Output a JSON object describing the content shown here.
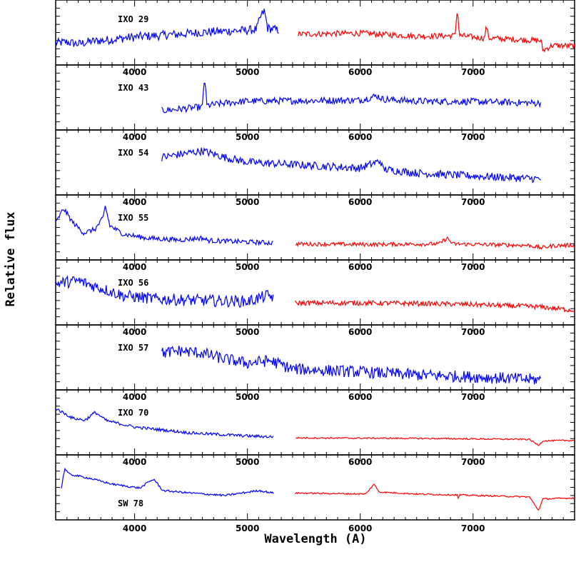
{
  "chart_data": {
    "type": "line",
    "xlabel": "Wavelength (A)",
    "ylabel": "Relative flux",
    "xlim": [
      3300,
      7900
    ],
    "x_ticks": [
      "4000",
      "5000",
      "6000",
      "7000"
    ],
    "grid": false,
    "colors": {
      "blue_arm": "#0000ff",
      "red_arm": "#ff0000"
    },
    "panels": [
      {
        "label": "IXO 29",
        "series": [
          {
            "arm": "blue",
            "color": "#0000ff",
            "x_range": [
              3300,
              5280
            ],
            "points": [
              [
                3300,
                0.3
              ],
              [
                3400,
                0.32
              ],
              [
                3500,
                0.28
              ],
              [
                3600,
                0.33
              ],
              [
                3700,
                0.35
              ],
              [
                3800,
                0.37
              ],
              [
                3900,
                0.4
              ],
              [
                4000,
                0.42
              ],
              [
                4100,
                0.44
              ],
              [
                4200,
                0.45
              ],
              [
                4300,
                0.47
              ],
              [
                4400,
                0.48
              ],
              [
                4500,
                0.5
              ],
              [
                4600,
                0.52
              ],
              [
                4700,
                0.53
              ],
              [
                4800,
                0.54
              ],
              [
                4900,
                0.55
              ],
              [
                5000,
                0.56
              ],
              [
                5080,
                0.58
              ],
              [
                5120,
                0.85
              ],
              [
                5150,
                0.95
              ],
              [
                5180,
                0.6
              ],
              [
                5280,
                0.56
              ]
            ],
            "noise": 0.09
          },
          {
            "arm": "red",
            "color": "#ff0000",
            "x_range": [
              5450,
              7900
            ],
            "points": [
              [
                5450,
                0.48
              ],
              [
                6000,
                0.5
              ],
              [
                6500,
                0.44
              ],
              [
                6840,
                0.45
              ],
              [
                6860,
                1.0
              ],
              [
                6880,
                0.45
              ],
              [
                7100,
                0.4
              ],
              [
                7120,
                0.65
              ],
              [
                7140,
                0.4
              ],
              [
                7500,
                0.36
              ],
              [
                7600,
                0.35
              ],
              [
                7620,
                0.15
              ],
              [
                7700,
                0.25
              ],
              [
                7900,
                0.24
              ]
            ],
            "noise": 0.06
          }
        ]
      },
      {
        "label": "IXO 43",
        "series": [
          {
            "arm": "blue",
            "color": "#0000ff",
            "x_range": [
              4240,
              7600
            ],
            "points": [
              [
                4240,
                0.25
              ],
              [
                4400,
                0.28
              ],
              [
                4600,
                0.32
              ],
              [
                4620,
                0.95
              ],
              [
                4640,
                0.35
              ],
              [
                4800,
                0.4
              ],
              [
                5000,
                0.44
              ],
              [
                5500,
                0.45
              ],
              [
                6000,
                0.46
              ],
              [
                6150,
                0.55
              ],
              [
                6200,
                0.48
              ],
              [
                6500,
                0.44
              ],
              [
                7000,
                0.43
              ],
              [
                7600,
                0.4
              ]
            ],
            "noise": 0.07
          }
        ]
      },
      {
        "label": "IXO 54",
        "series": [
          {
            "arm": "blue",
            "color": "#0000ff",
            "x_range": [
              4240,
              7600
            ],
            "points": [
              [
                4240,
                0.62
              ],
              [
                4400,
                0.68
              ],
              [
                4600,
                0.75
              ],
              [
                4800,
                0.62
              ],
              [
                5000,
                0.52
              ],
              [
                5500,
                0.46
              ],
              [
                6000,
                0.4
              ],
              [
                6180,
                0.55
              ],
              [
                6200,
                0.38
              ],
              [
                6500,
                0.3
              ],
              [
                7000,
                0.24
              ],
              [
                7600,
                0.18
              ]
            ],
            "noise": 0.08
          }
        ]
      },
      {
        "label": "IXO 55",
        "series": [
          {
            "arm": "blue",
            "color": "#0000ff",
            "x_range": [
              3300,
              5230
            ],
            "points": [
              [
                3300,
                0.6
              ],
              [
                3370,
                0.9
              ],
              [
                3450,
                0.62
              ],
              [
                3550,
                0.4
              ],
              [
                3650,
                0.48
              ],
              [
                3720,
                0.7
              ],
              [
                3740,
                0.95
              ],
              [
                3780,
                0.55
              ],
              [
                3900,
                0.38
              ],
              [
                4100,
                0.3
              ],
              [
                4400,
                0.26
              ],
              [
                4600,
                0.3
              ],
              [
                4650,
                0.25
              ],
              [
                5000,
                0.22
              ],
              [
                5230,
                0.2
              ]
            ],
            "noise": 0.05
          },
          {
            "arm": "red",
            "color": "#ff0000",
            "x_range": [
              5430,
              7900
            ],
            "points": [
              [
                5430,
                0.18
              ],
              [
                6000,
                0.17
              ],
              [
                6700,
                0.18
              ],
              [
                6770,
                0.3
              ],
              [
                6820,
                0.18
              ],
              [
                7500,
                0.15
              ],
              [
                7600,
                0.1
              ],
              [
                7700,
                0.14
              ],
              [
                7900,
                0.16
              ]
            ],
            "noise": 0.04
          }
        ]
      },
      {
        "label": "IXO 56",
        "series": [
          {
            "arm": "blue",
            "color": "#0000ff",
            "x_range": [
              3300,
              5230
            ],
            "points": [
              [
                3300,
                0.7
              ],
              [
                3500,
                0.75
              ],
              [
                3700,
                0.6
              ],
              [
                3900,
                0.45
              ],
              [
                4200,
                0.38
              ],
              [
                4600,
                0.35
              ],
              [
                5000,
                0.33
              ],
              [
                5180,
                0.45
              ],
              [
                5230,
                0.42
              ]
            ],
            "noise": 0.12
          },
          {
            "arm": "red",
            "color": "#ff0000",
            "x_range": [
              5420,
              7900
            ],
            "points": [
              [
                5420,
                0.3
              ],
              [
                6000,
                0.3
              ],
              [
                6500,
                0.29
              ],
              [
                7000,
                0.27
              ],
              [
                7600,
                0.22
              ],
              [
                7900,
                0.15
              ]
            ],
            "noise": 0.05
          }
        ]
      },
      {
        "label": "IXO 57",
        "series": [
          {
            "arm": "blue",
            "color": "#0000ff",
            "x_range": [
              4240,
              7600
            ],
            "points": [
              [
                4240,
                0.6
              ],
              [
                4400,
                0.65
              ],
              [
                4600,
                0.6
              ],
              [
                4800,
                0.48
              ],
              [
                5000,
                0.4
              ],
              [
                5200,
                0.45
              ],
              [
                5400,
                0.28
              ],
              [
                6000,
                0.22
              ],
              [
                6500,
                0.16
              ],
              [
                7000,
                0.12
              ],
              [
                7600,
                0.06
              ]
            ],
            "noise": 0.12
          }
        ]
      },
      {
        "label": "IXO 70",
        "series": [
          {
            "arm": "blue",
            "color": "#0000ff",
            "x_range": [
              3300,
              5230
            ],
            "points": [
              [
                3300,
                0.8
              ],
              [
                3450,
                0.6
              ],
              [
                3560,
                0.56
              ],
              [
                3650,
                0.72
              ],
              [
                3750,
                0.55
              ],
              [
                4000,
                0.42
              ],
              [
                4500,
                0.3
              ],
              [
                5000,
                0.24
              ],
              [
                5230,
                0.22
              ]
            ],
            "noise": 0.03
          },
          {
            "arm": "red",
            "color": "#ff0000",
            "x_range": [
              5430,
              7900
            ],
            "points": [
              [
                5430,
                0.2
              ],
              [
                6500,
                0.19
              ],
              [
                7500,
                0.17
              ],
              [
                7580,
                0.05
              ],
              [
                7620,
                0.14
              ],
              [
                7900,
                0.15
              ]
            ],
            "noise": 0.015
          }
        ]
      },
      {
        "label": "SW 78",
        "series": [
          {
            "arm": "blue",
            "color": "#0000ff",
            "x_range": [
              3350,
              5230
            ],
            "points": [
              [
                3350,
                0.5
              ],
              [
                3380,
                0.9
              ],
              [
                3420,
                0.78
              ],
              [
                3600,
                0.7
              ],
              [
                3800,
                0.58
              ],
              [
                4050,
                0.5
              ],
              [
                4120,
                0.62
              ],
              [
                4170,
                0.68
              ],
              [
                4250,
                0.45
              ],
              [
                4500,
                0.4
              ],
              [
                4800,
                0.35
              ],
              [
                5100,
                0.45
              ],
              [
                5230,
                0.4
              ]
            ],
            "noise": 0.02
          },
          {
            "arm": "red",
            "color": "#ff0000",
            "x_range": [
              5420,
              7900
            ],
            "points": [
              [
                5420,
                0.4
              ],
              [
                6050,
                0.38
              ],
              [
                6120,
                0.58
              ],
              [
                6170,
                0.42
              ],
              [
                6500,
                0.38
              ],
              [
                6860,
                0.36
              ],
              [
                6870,
                0.28
              ],
              [
                6880,
                0.36
              ],
              [
                7500,
                0.32
              ],
              [
                7580,
                0.05
              ],
              [
                7620,
                0.28
              ],
              [
                7900,
                0.3
              ]
            ],
            "noise": 0.015
          }
        ]
      }
    ]
  }
}
